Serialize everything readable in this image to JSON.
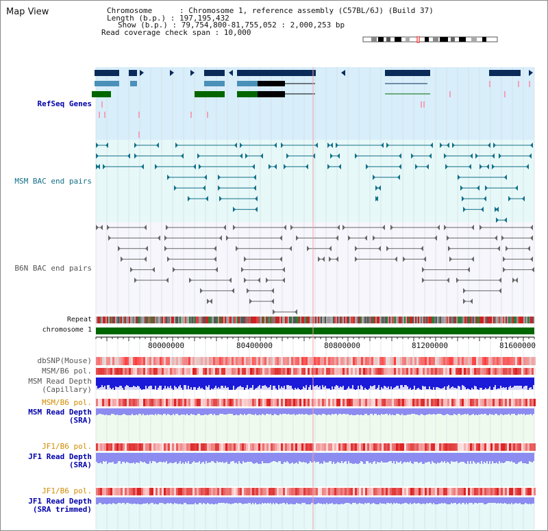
{
  "title": "Map View",
  "info": {
    "chromosome": "Chromosome      : Chromosome 1, reference assembly (C57BL/6J) (Build 37)",
    "length": "Length (b.p.) : 197,195,432",
    "show": "Show (b.p.) : 79,754,800-81,755,052 : 2,000,253 bp",
    "coverage": "Read coverage check span : 10,000"
  },
  "tracks": {
    "refseq": "RefSeq Genes",
    "msm_bac": "MSM BAC end pairs",
    "b6n_bac": "B6N BAC end pairs",
    "repeat": "Repeat",
    "chromosome": "chromosome 1",
    "dbsnp": "dbSNP(Mouse)",
    "msm_b6_pol": "MSM/B6 pol.",
    "msm_depth_cap_1": "MSM Read Depth",
    "msm_depth_cap_2": "(Capillary)",
    "msm_b6_pol2": "MSM/B6 pol.",
    "msm_depth_sra_1": "MSM Read Depth",
    "msm_depth_sra_2": "(SRA)",
    "jf1_b6_pol": "JF1/B6 pol.",
    "jf1_depth_sra_1": "JF1 Read Depth",
    "jf1_depth_sra_2": "(SRA)",
    "jf1_b6_pol2": "JF1/B6 pol.",
    "jf1_depth_trim_1": "JF1 Read Depth",
    "jf1_depth_trim_2": "(SRA trimmed)"
  },
  "axis_ticks": [
    "80000000",
    "80400000",
    "80800000",
    "81200000",
    "81600000"
  ],
  "colors": {
    "refseq_bg": "#d8eefa",
    "msm_bac_bg": "#e6f8f8",
    "b6n_bac_bg": "#f4f4fa",
    "gene_dark": "#0a2a5a",
    "gene_mid": "#4a90b8",
    "gene_green": "#006600",
    "msm_pair": "#126f88",
    "b6n_pair": "#666666",
    "chromosome_bar": "#006600"
  }
}
